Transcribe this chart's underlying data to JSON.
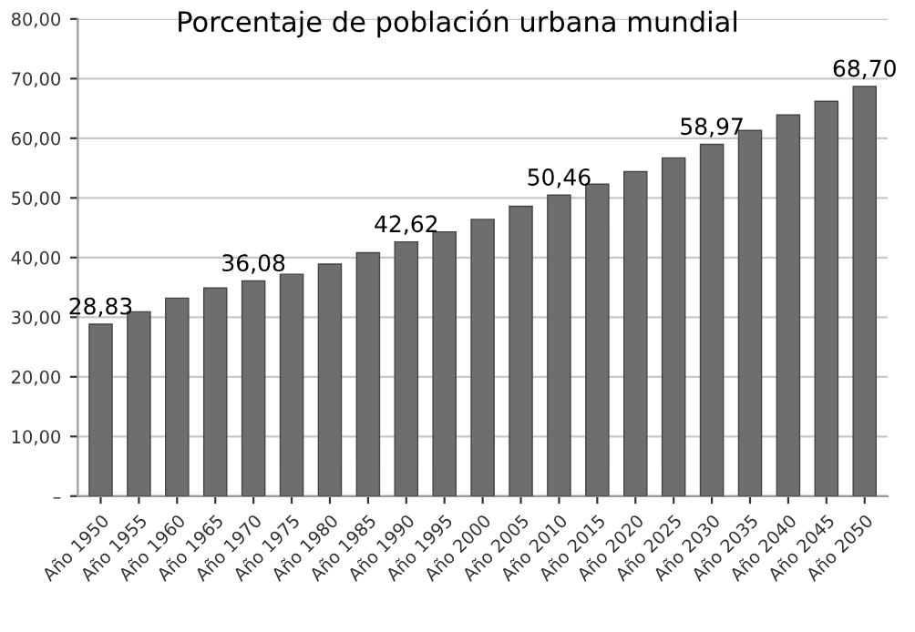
{
  "chart_data": {
    "type": "bar",
    "title": "Porcentaje de población urbana mundial",
    "categories": [
      "Año 1950",
      "Año 1955",
      "Año 1960",
      "Año 1965",
      "Año 1970",
      "Año 1975",
      "Año 1980",
      "Año 1985",
      "Año 1990",
      "Año 1995",
      "Año 2000",
      "Año 2005",
      "Año 2010",
      "Año 2015",
      "Año 2020",
      "Año 2025",
      "Año 2030",
      "Año 2035",
      "Año 2040",
      "Año 2045",
      "Año 2050"
    ],
    "values": [
      28.83,
      30.9,
      33.2,
      34.9,
      36.08,
      37.2,
      38.9,
      40.8,
      42.62,
      44.3,
      46.4,
      48.6,
      50.46,
      52.3,
      54.4,
      56.7,
      58.97,
      61.3,
      63.9,
      66.2,
      68.7
    ],
    "value_labels": [
      "28,83",
      null,
      null,
      null,
      "36,08",
      null,
      null,
      null,
      "42,62",
      null,
      null,
      null,
      "50,46",
      null,
      null,
      null,
      "58,97",
      null,
      null,
      null,
      "68,70"
    ],
    "color": "#6e6e6e",
    "ylim": [
      0,
      80
    ],
    "yticks": [
      {
        "value": 0,
        "label": "–"
      },
      {
        "value": 10,
        "label": "10,00"
      },
      {
        "value": 20,
        "label": "20,00"
      },
      {
        "value": 30,
        "label": "30,00"
      },
      {
        "value": 40,
        "label": "40,00"
      },
      {
        "value": 50,
        "label": "50,00"
      },
      {
        "value": 60,
        "label": "60,00"
      },
      {
        "value": 70,
        "label": "70,00"
      },
      {
        "value": 80,
        "label": "80,00"
      }
    ],
    "grid": "y"
  }
}
